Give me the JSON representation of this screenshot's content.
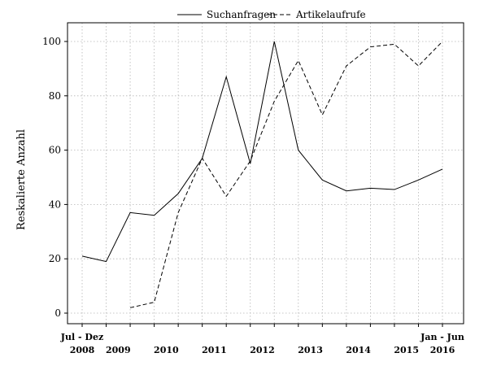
{
  "chart_data": {
    "type": "line",
    "title": "",
    "xlabel": "",
    "ylabel": "Reskalierte Anzahl",
    "ylim": [
      0,
      100
    ],
    "y_ticks": [
      0,
      20,
      40,
      60,
      80,
      100
    ],
    "grid": true,
    "legend_position": "top",
    "x": [
      "Jul - Dez 2008",
      "Jan - Jun 2009",
      "Jul - Dez 2009",
      "Jan - Jun 2010",
      "Jul - Dez 2010",
      "Jan - Jun 2011",
      "Jul - Dez 2011",
      "Jan - Jun 2012",
      "Jul - Dez 2012",
      "Jan - Jun 2013",
      "Jul - Dez 2013",
      "Jan - Jun 2014",
      "Jul - Dez 2014",
      "Jan - Jun 2015",
      "Jul - Dez 2015",
      "Jan - Jun 2016"
    ],
    "x_tick_labels": [
      {
        "index": 0,
        "lines": [
          "Jul - Dez",
          "2008"
        ]
      },
      {
        "index": 1.5,
        "lines": [
          "",
          "2009"
        ]
      },
      {
        "index": 3.5,
        "lines": [
          "",
          "2010"
        ]
      },
      {
        "index": 5.5,
        "lines": [
          "",
          "2011"
        ]
      },
      {
        "index": 7.5,
        "lines": [
          "",
          "2012"
        ]
      },
      {
        "index": 9.5,
        "lines": [
          "",
          "2013"
        ]
      },
      {
        "index": 11.5,
        "lines": [
          "",
          "2014"
        ]
      },
      {
        "index": 13.5,
        "lines": [
          "",
          "2015"
        ]
      },
      {
        "index": 15,
        "lines": [
          "Jan - Jun",
          "2016"
        ]
      }
    ],
    "series": [
      {
        "name": "Suchanfragen",
        "style": "solid",
        "values": [
          21,
          19,
          37,
          36,
          44,
          57,
          87,
          55,
          100,
          60,
          49,
          45,
          46,
          45.5,
          49,
          53
        ]
      },
      {
        "name": "Artikelaufrufe",
        "style": "dashed",
        "values": [
          null,
          null,
          2,
          4,
          37,
          57,
          43,
          56,
          78,
          93,
          73,
          91,
          98,
          99,
          91,
          100
        ]
      }
    ]
  }
}
